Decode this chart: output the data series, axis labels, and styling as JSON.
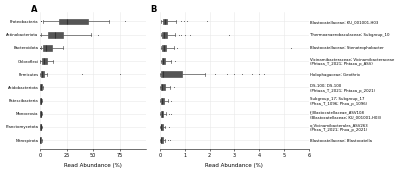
{
  "panel_A_labels": [
    "Proteobacteria",
    "Actinobacteriota",
    "Bacteroidota",
    "Chloroflexi",
    "Firmicutes",
    "Acidobacteriota",
    "Patescibacteria",
    "Monocrosia",
    "Planctomycetota",
    "Nitrospirota"
  ],
  "panel_A_data": [
    {
      "med": 25,
      "q1": 18,
      "q3": 45,
      "whislo": 2.5,
      "whishi": 65,
      "fliers": [
        1.0,
        1.2,
        80
      ]
    },
    {
      "med": 14,
      "q1": 8,
      "q3": 22,
      "whislo": 1.0,
      "whishi": 48,
      "fliers": [
        0.4,
        55
      ]
    },
    {
      "med": 6,
      "q1": 3,
      "q3": 11,
      "whislo": 0.8,
      "whishi": 22,
      "fliers": [
        0.2,
        0.3
      ]
    },
    {
      "med": 4,
      "q1": 2,
      "q3": 7,
      "whislo": 0.5,
      "whishi": 12,
      "fliers": []
    },
    {
      "med": 2,
      "q1": 1,
      "q3": 4,
      "whislo": 0.3,
      "whishi": 7,
      "fliers": [
        40,
        75
      ]
    },
    {
      "med": 0.8,
      "q1": 0.4,
      "q3": 1.5,
      "whislo": 0.1,
      "whishi": 2.5,
      "fliers": []
    },
    {
      "med": 0.7,
      "q1": 0.3,
      "q3": 1.2,
      "whislo": 0.1,
      "whishi": 2.0,
      "fliers": []
    },
    {
      "med": 0.6,
      "q1": 0.3,
      "q3": 1.1,
      "whislo": 0.1,
      "whishi": 1.8,
      "fliers": []
    },
    {
      "med": 0.7,
      "q1": 0.3,
      "q3": 1.3,
      "whislo": 0.1,
      "whishi": 2.2,
      "fliers": []
    },
    {
      "med": 0.5,
      "q1": 0.2,
      "q3": 1.0,
      "whislo": 0.08,
      "whishi": 1.8,
      "fliers": []
    }
  ],
  "panel_A_xlim": [
    0,
    100
  ],
  "panel_A_xticks": [
    0,
    25,
    50,
    75
  ],
  "panel_B_labels": [
    "Blastocatellaceae; KU_001001-H03",
    "Thermoanaerobaculaceae; Subgroup_10",
    "Blastocatellaceae; Stenotrophobacter",
    "Vicinamibacteraceae; Vicinamibacteraceae\n(Phtaxa_T_2021; Phtaxa_p_ASV)",
    "Holophagaceae; Geothrix",
    "DS-100; DS-100\n(Phtaxa_T_2021; Phtaxa_p_2021)",
    "Subgroup_17; Subgroup_17\n(Phxa_T_1096; Phxa_p_1096)",
    "f_Blastocatellaceae_ASV108\n(Blastocatellaceae; KU_001001-H03)",
    "o_Vicinamibacterales_ASV263\n(Phxa_T_2021; Phxa_p_2021)",
    "Blastocatellaceae; Blastocatella"
  ],
  "panel_B_data": [
    {
      "med": 0.18,
      "q1": 0.1,
      "q3": 0.3,
      "whislo": 0.04,
      "whishi": 0.65,
      "fliers": [
        0.85,
        0.95,
        1.1,
        1.9
      ]
    },
    {
      "med": 0.15,
      "q1": 0.08,
      "q3": 0.28,
      "whislo": 0.03,
      "whishi": 0.6,
      "fliers": [
        0.75,
        0.85,
        1.0,
        1.2,
        2.8
      ]
    },
    {
      "med": 0.14,
      "q1": 0.07,
      "q3": 0.25,
      "whislo": 0.03,
      "whishi": 0.55,
      "fliers": [
        0.7,
        5.3
      ]
    },
    {
      "med": 0.12,
      "q1": 0.06,
      "q3": 0.22,
      "whislo": 0.02,
      "whishi": 0.45,
      "fliers": [
        0.6
      ]
    },
    {
      "med": 0.1,
      "q1": 0.04,
      "q3": 0.9,
      "whislo": 0.01,
      "whishi": 1.8,
      "fliers": [
        2.2,
        2.7,
        3.0,
        3.3,
        3.7,
        4.0,
        4.2
      ]
    },
    {
      "med": 0.08,
      "q1": 0.04,
      "q3": 0.18,
      "whislo": 0.01,
      "whishi": 0.4,
      "fliers": [
        0.55
      ]
    },
    {
      "med": 0.07,
      "q1": 0.03,
      "q3": 0.15,
      "whislo": 0.01,
      "whishi": 0.32,
      "fliers": [
        0.45
      ]
    },
    {
      "med": 0.06,
      "q1": 0.02,
      "q3": 0.12,
      "whislo": 0.01,
      "whishi": 0.25,
      "fliers": [
        0.38,
        0.45
      ]
    },
    {
      "med": 0.05,
      "q1": 0.02,
      "q3": 0.1,
      "whislo": 0.01,
      "whishi": 0.22,
      "fliers": [
        0.35
      ]
    },
    {
      "med": 0.05,
      "q1": 0.02,
      "q3": 0.1,
      "whislo": 0.01,
      "whishi": 0.22,
      "fliers": [
        0.32,
        0.42
      ]
    }
  ],
  "panel_B_xlim": [
    0,
    6
  ],
  "panel_B_xticks": [
    0,
    1,
    2,
    3,
    4,
    5,
    6
  ],
  "xlabel": "Read Abundance (%)",
  "box_facecolor": "#d8d8d8",
  "box_edgecolor": "#555555",
  "median_color": "#333333",
  "whisker_color": "#555555",
  "flier_color": "#555555",
  "title_A": "A",
  "title_B": "B",
  "bg_color": "#ffffff",
  "grid_color": "#e8e8e8"
}
